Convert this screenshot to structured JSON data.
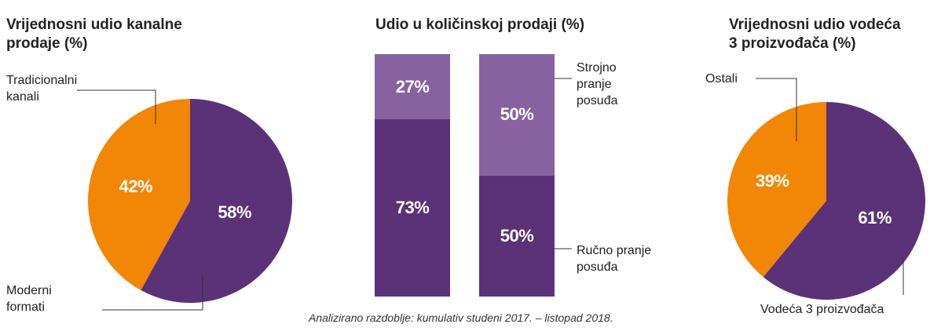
{
  "colors": {
    "purple_dark": "#5b3278",
    "purple_light": "#8862a0",
    "orange": "#f28705"
  },
  "chart_data": [
    {
      "type": "pie",
      "title": "Vrijednosni udio kanalne prodaje (%)",
      "title_lines": [
        "Vrijednosni udio kanalne",
        "prodaje (%)"
      ],
      "slices": [
        {
          "name": "Tradicionalni kanali",
          "label_lines": [
            "Tradicionalni",
            "kanali"
          ],
          "value": 42,
          "label": "42%",
          "color": "#f28705"
        },
        {
          "name": "Moderni formati",
          "label_lines": [
            "Moderni",
            "formati"
          ],
          "value": 58,
          "label": "58%",
          "color": "#5b3278"
        }
      ]
    },
    {
      "type": "bar",
      "stacked": true,
      "title": "Udio u količinskoj prodaji (%)",
      "categories": [
        "",
        ""
      ],
      "series": [
        {
          "name": "Ručno pranje posuđa",
          "label_lines": [
            "Ručno pranje",
            "posuđa"
          ],
          "values": [
            73,
            50
          ],
          "labels": [
            "73%",
            "50%"
          ],
          "color": "#5b3278"
        },
        {
          "name": "Strojno pranje posuđa",
          "label_lines": [
            "Strojno",
            "pranje",
            "posuđa"
          ],
          "values": [
            27,
            50
          ],
          "labels": [
            "27%",
            "50%"
          ],
          "color": "#8862a0"
        }
      ],
      "ylim": [
        0,
        100
      ]
    },
    {
      "type": "pie",
      "title": "Vrijednosni udio vodeća 3 proizvođača (%)",
      "title_lines": [
        "Vrijednosni udio vodeća",
        "3 proizvođača (%)"
      ],
      "slices": [
        {
          "name": "Ostali",
          "label_lines": [
            "Ostali"
          ],
          "value": 39,
          "label": "39%",
          "color": "#f28705"
        },
        {
          "name": "Vodeća 3 proizvođača",
          "label_lines": [
            "Vodeća 3 proizvođača"
          ],
          "value": 61,
          "label": "61%",
          "color": "#5b3278"
        }
      ]
    }
  ],
  "footnote": "Analizirano razdoblje: kumulativ studeni 2017. – listopad 2018."
}
